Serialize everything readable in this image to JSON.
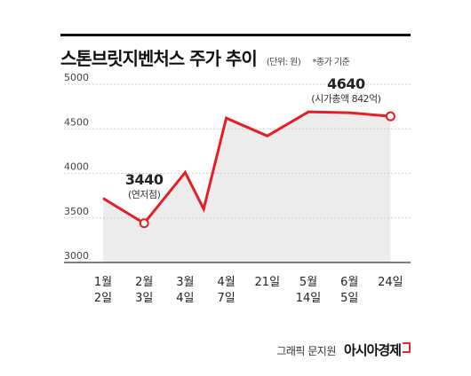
{
  "title": "스톤브릿지벤처스 주가 추이",
  "unit": "(단위: 원)",
  "note": "*종가 기준",
  "credit": {
    "label": "그래픽 문지원",
    "brand": "아시아경제"
  },
  "colors": {
    "line": "#e51e25",
    "area": "#ececec",
    "grid": "#cfcfcf",
    "axis": "#333333"
  },
  "chart_data": {
    "type": "line",
    "title": "스톤브릿지벤처스 주가 추이",
    "ylabel": "(단위: 원)",
    "ylim": [
      3000,
      5000
    ],
    "yticks": [
      3000,
      3500,
      4000,
      4500,
      5000
    ],
    "categories": [
      [
        "1월",
        "2일"
      ],
      [
        "2월",
        "3일"
      ],
      [
        "3월",
        "4일"
      ],
      [
        "4월",
        "7일"
      ],
      [
        "21일"
      ],
      [
        "5월",
        "14일"
      ],
      [
        "6월",
        "5일"
      ],
      [
        "24일"
      ]
    ],
    "x": [
      0,
      1,
      2,
      2.45,
      3,
      4,
      5,
      6,
      7
    ],
    "values": [
      3720,
      3440,
      4010,
      3600,
      4620,
      4420,
      4690,
      4680,
      4640
    ],
    "annotations": [
      {
        "index": 1,
        "value": "3440",
        "label": "(연저점)"
      },
      {
        "index": 8,
        "value": "4640",
        "label": "(시가총액 842억)"
      }
    ]
  }
}
